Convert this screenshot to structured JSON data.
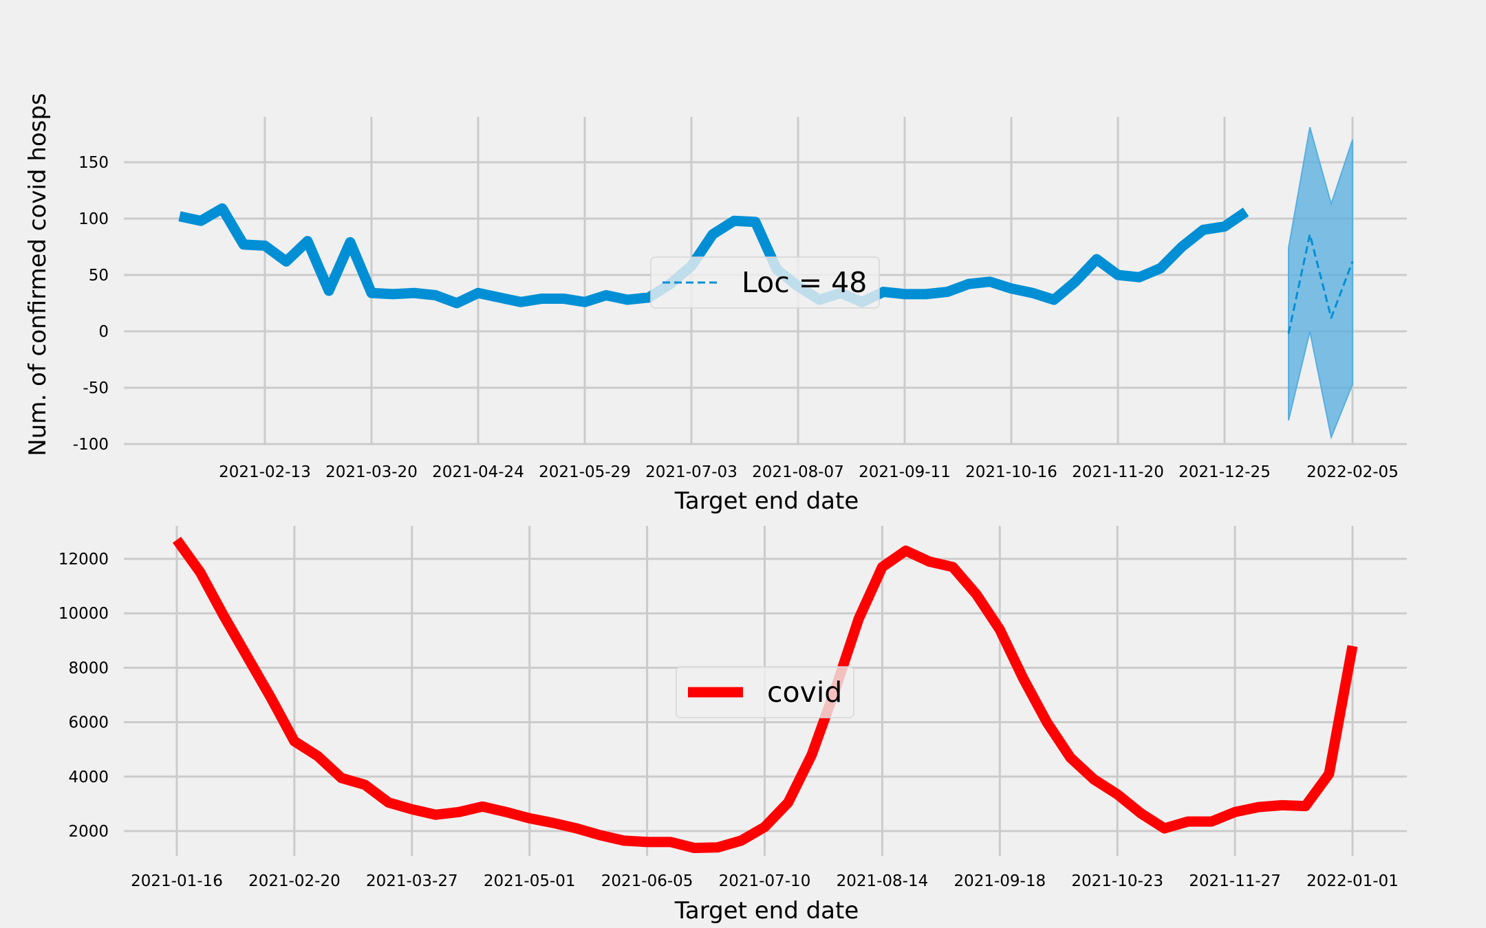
{
  "colors": {
    "background": "#f0f0f0",
    "grid": "#cbcbcb",
    "top_series": "#008fd5",
    "bottom_series": "#ff0000",
    "band": "#56aedf"
  },
  "chart_data": [
    {
      "type": "line",
      "title": "",
      "xlabel": "Target end date",
      "ylabel": "Num. of confirmed covid hosps",
      "ylim": [
        -100,
        190
      ],
      "yticks": [
        -100,
        -50,
        0,
        50,
        100,
        150
      ],
      "xticks": [
        "2021-02-13",
        "2021-03-20",
        "2021-04-24",
        "2021-05-29",
        "2021-07-03",
        "2021-08-07",
        "2021-09-11",
        "2021-10-16",
        "2021-11-20",
        "2021-12-25",
        "2022-02-05"
      ],
      "grid": true,
      "legend": {
        "placement": "center",
        "entries": [
          "Loc = 48"
        ]
      },
      "series": [
        {
          "style": "solid",
          "color": "#008fd5",
          "x": [
            "2021-01-16",
            "2021-01-23",
            "2021-01-30",
            "2021-02-06",
            "2021-02-13",
            "2021-02-20",
            "2021-02-27",
            "2021-03-06",
            "2021-03-13",
            "2021-03-20",
            "2021-03-27",
            "2021-04-03",
            "2021-04-10",
            "2021-04-17",
            "2021-04-24",
            "2021-05-01",
            "2021-05-08",
            "2021-05-15",
            "2021-05-22",
            "2021-05-29",
            "2021-06-05",
            "2021-06-12",
            "2021-06-19",
            "2021-06-26",
            "2021-07-03",
            "2021-07-10",
            "2021-07-17",
            "2021-07-24",
            "2021-07-31",
            "2021-08-07",
            "2021-08-14",
            "2021-08-21",
            "2021-08-28",
            "2021-09-04",
            "2021-09-11",
            "2021-09-18",
            "2021-09-25",
            "2021-10-02",
            "2021-10-09",
            "2021-10-16",
            "2021-10-23",
            "2021-10-30",
            "2021-11-06",
            "2021-11-13",
            "2021-11-20",
            "2021-11-27",
            "2021-12-04",
            "2021-12-11",
            "2021-12-18",
            "2021-12-25",
            "2022-01-01"
          ],
          "values": [
            102,
            98,
            109,
            77,
            76,
            62,
            80,
            36,
            79,
            34,
            33,
            34,
            32,
            25,
            34,
            30,
            26,
            29,
            29,
            26,
            32,
            28,
            30,
            42,
            58,
            86,
            98,
            97,
            55,
            40,
            28,
            34,
            26,
            35,
            33,
            33,
            35,
            42,
            44,
            38,
            34,
            28,
            44,
            64,
            50,
            48,
            56,
            75,
            90,
            93,
            106
          ]
        },
        {
          "name": "Loc = 48",
          "style": "dashed",
          "color": "#008fd5",
          "x": [
            "2022-01-15",
            "2022-01-22",
            "2022-01-29",
            "2022-02-05"
          ],
          "values": [
            -2,
            86,
            12,
            62
          ],
          "band_upper": [
            74,
            181,
            113,
            170
          ],
          "band_lower": [
            -79,
            0,
            -94,
            -47
          ]
        }
      ]
    },
    {
      "type": "line",
      "title": "",
      "xlabel": "Target end date",
      "ylabel": "",
      "ylim": [
        1000,
        13200
      ],
      "yticks": [
        2000,
        4000,
        6000,
        8000,
        10000,
        12000
      ],
      "xticks": [
        "2021-01-16",
        "2021-02-20",
        "2021-03-27",
        "2021-05-01",
        "2021-06-05",
        "2021-07-10",
        "2021-08-14",
        "2021-09-18",
        "2021-10-23",
        "2021-11-27",
        "2022-01-01"
      ],
      "grid": true,
      "legend": {
        "placement": "center",
        "entries": [
          "covid"
        ]
      },
      "series": [
        {
          "name": "covid",
          "color": "#ff0000",
          "x": [
            "2021-01-16",
            "2021-01-23",
            "2021-01-30",
            "2021-02-06",
            "2021-02-13",
            "2021-02-20",
            "2021-02-27",
            "2021-03-06",
            "2021-03-13",
            "2021-03-20",
            "2021-03-27",
            "2021-04-03",
            "2021-04-10",
            "2021-04-17",
            "2021-04-24",
            "2021-05-01",
            "2021-05-08",
            "2021-05-15",
            "2021-05-22",
            "2021-05-29",
            "2021-06-05",
            "2021-06-12",
            "2021-06-19",
            "2021-06-26",
            "2021-07-03",
            "2021-07-10",
            "2021-07-17",
            "2021-07-24",
            "2021-07-31",
            "2021-08-07",
            "2021-08-14",
            "2021-08-21",
            "2021-08-28",
            "2021-09-04",
            "2021-09-11",
            "2021-09-18",
            "2021-09-25",
            "2021-10-02",
            "2021-10-09",
            "2021-10-16",
            "2021-10-23",
            "2021-10-30",
            "2021-11-06",
            "2021-11-13",
            "2021-11-20",
            "2021-11-27",
            "2021-12-04",
            "2021-12-11",
            "2021-12-18",
            "2021-12-25",
            "2022-01-01"
          ],
          "values": [
            12700,
            11500,
            9900,
            8400,
            6900,
            5300,
            4750,
            3950,
            3700,
            3050,
            2800,
            2600,
            2700,
            2900,
            2700,
            2470,
            2300,
            2100,
            1850,
            1650,
            1600,
            1600,
            1380,
            1400,
            1650,
            2150,
            3050,
            4800,
            7200,
            9800,
            11700,
            12300,
            11900,
            11700,
            10700,
            9400,
            7600,
            6000,
            4700,
            3900,
            3350,
            2650,
            2100,
            2350,
            2350,
            2700,
            2880,
            2950,
            2920,
            4100,
            8800
          ]
        }
      ]
    }
  ]
}
